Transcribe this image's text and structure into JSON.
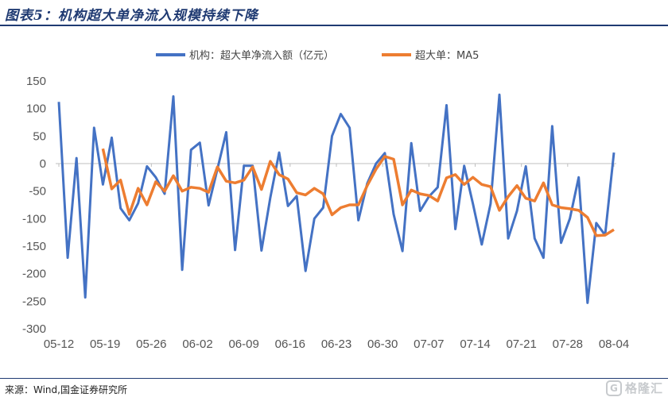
{
  "header": {
    "title": "图表5：机构超大单净流入规模持续下降"
  },
  "footer": {
    "source": "来源：Wind,国金证券研究所"
  },
  "watermark": {
    "text": "格隆汇",
    "icon": "G"
  },
  "colors": {
    "series1": "#4472C4",
    "series2": "#ED7D31",
    "axis": "#bfbfbf",
    "title": "#1f3a72"
  },
  "chart_data": {
    "type": "line",
    "title": "",
    "xlabel": "",
    "ylabel": "",
    "ylim": [
      -300,
      150
    ],
    "yticks": [
      150,
      100,
      50,
      0,
      -50,
      -100,
      -150,
      -200,
      -250,
      -300
    ],
    "x_tick_labels": [
      "05-12",
      "05-19",
      "05-26",
      "06-02",
      "06-09",
      "06-16",
      "06-23",
      "06-30",
      "07-07",
      "07-14",
      "07-21",
      "07-28",
      "08-04"
    ],
    "grid": false,
    "legend": "top",
    "series": [
      {
        "name": "机构：超大单净流入额（亿元）",
        "color": "#4472C4",
        "values": [
          112,
          -171,
          10,
          -243,
          65,
          -38,
          47,
          -81,
          -103,
          -72,
          -5,
          -25,
          -55,
          122,
          -193,
          25,
          38,
          -76,
          -10,
          57,
          -157,
          -4,
          -4,
          -158,
          -62,
          20,
          -77,
          -59,
          -195,
          -100,
          -80,
          50,
          90,
          65,
          -103,
          -36,
          0,
          19,
          -92,
          -159,
          37,
          -86,
          -60,
          -43,
          106,
          -119,
          -4,
          -73,
          -147,
          -73,
          125,
          -136,
          -86,
          -5,
          -136,
          -171,
          68,
          -144,
          -100,
          -25,
          -253,
          -108,
          -130,
          20
        ]
      },
      {
        "name": "超大单：MA5",
        "color": "#ED7D31",
        "values": [
          27,
          -46,
          -30,
          -92,
          -45,
          -75,
          -33,
          -50,
          -22,
          -50,
          -43,
          -45,
          -52,
          -6,
          -32,
          -35,
          -30,
          -6,
          -47,
          4,
          -20,
          -28,
          -53,
          -57,
          -45,
          -55,
          -93,
          -80,
          -75,
          -75,
          -40,
          -10,
          13,
          8,
          -75,
          -48,
          -55,
          -58,
          -68,
          -26,
          -20,
          -38,
          -25,
          -38,
          -42,
          -85,
          -60,
          -40,
          -63,
          -68,
          -35,
          -75,
          -80,
          -82,
          -85,
          -98,
          -131,
          -130,
          -120
        ]
      }
    ]
  }
}
